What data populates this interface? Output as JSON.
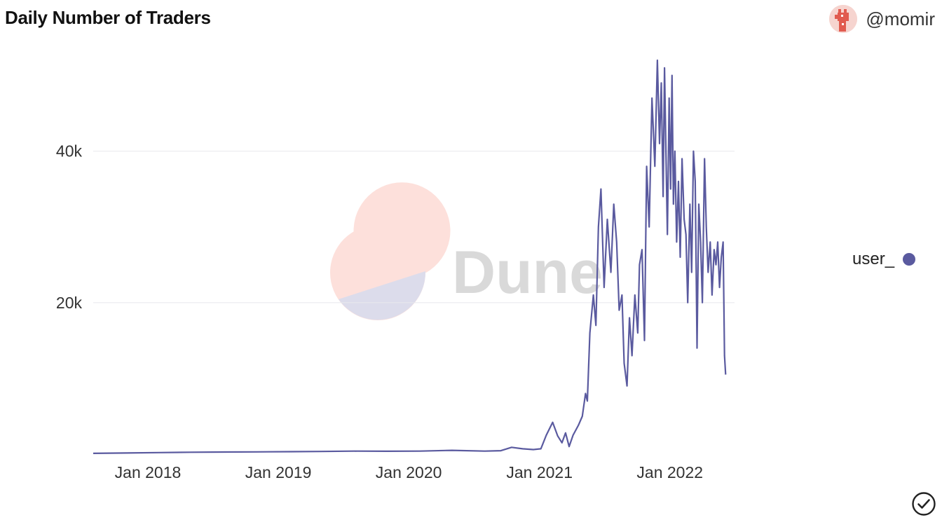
{
  "header": {
    "title": "Daily Number of Traders",
    "author": "@momir"
  },
  "watermark": {
    "text": "Dune"
  },
  "icons": {
    "avatar": "llama-avatar-icon",
    "verified": "check-circle-icon"
  },
  "colors": {
    "series": "#5a5a9f",
    "grid": "#e8e8ec",
    "watermark_pink": "#fde0db",
    "watermark_blue": "#dcdceb",
    "watermark_text": "#d9d9d9"
  },
  "chart_data": {
    "type": "line",
    "title": "Daily Number of Traders",
    "xlabel": "",
    "ylabel": "",
    "x_type": "date",
    "xlim": [
      "2017-08-01",
      "2022-07-01"
    ],
    "ylim": [
      0,
      52000
    ],
    "y_ticks": [
      20000,
      40000
    ],
    "y_tick_labels": [
      "20k",
      "40k"
    ],
    "x_ticks": [
      "2018-01-01",
      "2019-01-01",
      "2020-01-01",
      "2021-01-01",
      "2022-01-01"
    ],
    "x_tick_labels": [
      "Jan 2018",
      "Jan 2019",
      "Jan 2020",
      "Jan 2021",
      "Jan 2022"
    ],
    "grid": true,
    "legend_position": "right",
    "series": [
      {
        "name": "user_",
        "color": "#5a5a9f",
        "x": [
          "2017-08-01",
          "2017-11-01",
          "2018-02-01",
          "2018-05-01",
          "2018-08-01",
          "2018-11-01",
          "2019-02-01",
          "2019-05-01",
          "2019-08-01",
          "2019-11-01",
          "2020-02-01",
          "2020-05-01",
          "2020-08-01",
          "2020-09-15",
          "2020-10-15",
          "2020-11-15",
          "2020-12-15",
          "2021-01-05",
          "2021-01-20",
          "2021-02-07",
          "2021-02-21",
          "2021-03-05",
          "2021-03-15",
          "2021-03-25",
          "2021-04-05",
          "2021-04-20",
          "2021-05-01",
          "2021-05-10",
          "2021-05-15",
          "2021-05-22",
          "2021-06-01",
          "2021-06-08",
          "2021-06-15",
          "2021-06-22",
          "2021-07-01",
          "2021-07-10",
          "2021-07-20",
          "2021-07-28",
          "2021-08-05",
          "2021-08-12",
          "2021-08-20",
          "2021-08-26",
          "2021-09-03",
          "2021-09-10",
          "2021-09-17",
          "2021-09-25",
          "2021-10-03",
          "2021-10-08",
          "2021-10-15",
          "2021-10-22",
          "2021-10-28",
          "2021-11-04",
          "2021-11-12",
          "2021-11-20",
          "2021-11-27",
          "2021-12-03",
          "2021-12-08",
          "2021-12-13",
          "2021-12-17",
          "2021-12-21",
          "2021-12-25",
          "2021-12-30",
          "2022-01-03",
          "2022-01-07",
          "2022-01-11",
          "2022-01-15",
          "2022-01-20",
          "2022-01-25",
          "2022-01-30",
          "2022-02-04",
          "2022-02-10",
          "2022-02-15",
          "2022-02-20",
          "2022-02-26",
          "2022-03-03",
          "2022-03-08",
          "2022-03-13",
          "2022-03-18",
          "2022-03-23",
          "2022-03-28",
          "2022-04-02",
          "2022-04-08",
          "2022-04-13",
          "2022-04-18",
          "2022-04-24",
          "2022-04-29",
          "2022-05-05",
          "2022-05-10",
          "2022-05-15",
          "2022-05-20",
          "2022-05-25",
          "2022-05-30",
          "2022-06-03",
          "2022-06-06"
        ],
        "values": [
          100,
          150,
          200,
          250,
          280,
          300,
          320,
          350,
          400,
          380,
          400,
          500,
          400,
          450,
          900,
          700,
          600,
          700,
          2500,
          4200,
          2400,
          1500,
          2800,
          1000,
          2500,
          3800,
          5000,
          8000,
          7000,
          16000,
          21000,
          17000,
          30000,
          35000,
          22000,
          31000,
          24000,
          33000,
          28000,
          19000,
          21000,
          12000,
          9000,
          18000,
          13000,
          21000,
          16000,
          25000,
          27000,
          15000,
          38000,
          30000,
          47000,
          38000,
          52000,
          41000,
          49000,
          34000,
          51000,
          40000,
          29000,
          47000,
          35000,
          50000,
          33000,
          40000,
          28000,
          36000,
          26000,
          39000,
          31000,
          29000,
          20000,
          33000,
          24000,
          40000,
          36000,
          14000,
          33000,
          28000,
          20000,
          39000,
          30000,
          24000,
          28000,
          21000,
          27000,
          25000,
          28000,
          22000,
          26000,
          28000,
          13000,
          10500
        ]
      }
    ]
  }
}
